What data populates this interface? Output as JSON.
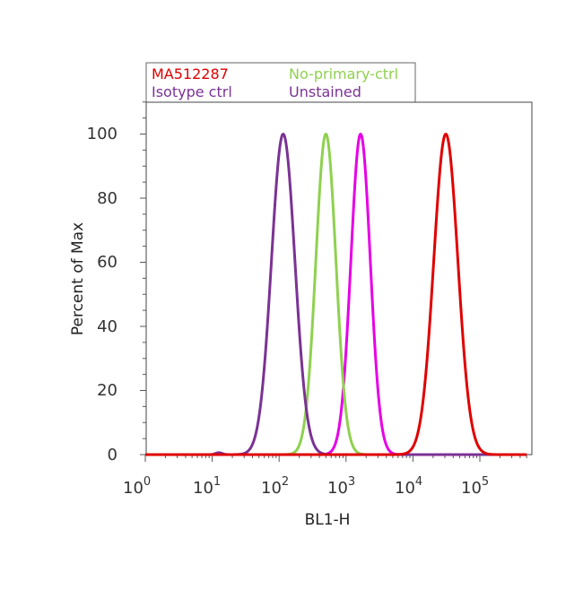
{
  "chart_data": {
    "type": "histogram",
    "title": "",
    "xlabel": "BL1-H",
    "ylabel": "Percent of Max",
    "x_scale": "log",
    "xlim": [
      1,
      500000
    ],
    "ylim": [
      0,
      110
    ],
    "x_ticks": [
      {
        "base": "10",
        "exp": "0",
        "value": 1
      },
      {
        "base": "10",
        "exp": "1",
        "value": 10
      },
      {
        "base": "10",
        "exp": "2",
        "value": 100
      },
      {
        "base": "10",
        "exp": "3",
        "value": 1000
      },
      {
        "base": "10",
        "exp": "4",
        "value": 10000
      },
      {
        "base": "10",
        "exp": "5",
        "value": 100000
      }
    ],
    "y_ticks": [
      "0",
      "20",
      "40",
      "60",
      "80",
      "100"
    ],
    "legend_position": "top",
    "series": [
      {
        "name": "MA512287",
        "color": "#e00000",
        "peak_x": 31000,
        "peak_y": 100
      },
      {
        "name": "No-primary-ctrl",
        "color": "#8fd14f",
        "peak_x": 500,
        "peak_y": 100
      },
      {
        "name": "Isotype ctrl",
        "color": "#7b3294",
        "peak_x": 115,
        "peak_y": 100
      },
      {
        "name": "Unstained",
        "color": "#e600e6",
        "peak_x": 1650,
        "peak_y": 100
      }
    ]
  }
}
